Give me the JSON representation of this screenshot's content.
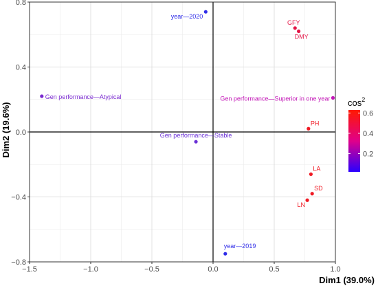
{
  "chart_data": {
    "type": "scatter",
    "xlabel": "Dim1 (39.0%)",
    "ylabel": "Dim2 (19.6%)",
    "xlim": [
      -1.5,
      1.0
    ],
    "ylim": [
      -0.8,
      0.8
    ],
    "x_ticks": [
      -1.5,
      -1.0,
      -0.5,
      0.0,
      0.5,
      1.0
    ],
    "y_ticks": [
      -0.8,
      -0.4,
      0.0,
      0.4,
      0.8
    ],
    "x_tick_labels": [
      "−1.5",
      "−1.0",
      "−0.5",
      "0.0",
      "0.5",
      "1.0"
    ],
    "y_tick_labels": [
      "−0.8",
      "−0.4",
      "0.0",
      "0.4",
      "0.8"
    ],
    "grid": true,
    "reference_lines": [
      0,
      0
    ],
    "legend": {
      "title": "cos",
      "title_superscript": "2",
      "position": "right",
      "labels": [
        "0.6",
        "0.4",
        "0.2"
      ],
      "values": [
        0.6,
        0.4,
        0.2
      ],
      "range": [
        0.02,
        0.63
      ],
      "colors": [
        "#2a00ff",
        "#e0008a",
        "#ff1a00"
      ]
    },
    "points": [
      {
        "label": "year—2020",
        "x": -0.06,
        "y": 0.74,
        "cos2": 0.05,
        "color": "#2f2ce8",
        "anchor": "end",
        "dx": -4,
        "dy": 10
      },
      {
        "label": "GFY",
        "x": 0.67,
        "y": 0.64,
        "cos2": 0.55,
        "color": "#e41546",
        "anchor": "middle",
        "dx": -2,
        "dy": -5
      },
      {
        "label": "DMY",
        "x": 0.7,
        "y": 0.62,
        "cos2": 0.55,
        "color": "#e41546",
        "anchor": "middle",
        "dx": 4,
        "dy": 11
      },
      {
        "label": "Gen performance—Atypical",
        "x": -1.4,
        "y": 0.22,
        "cos2": 0.15,
        "color": "#7a2ad0",
        "anchor": "start",
        "dx": 5,
        "dy": 4
      },
      {
        "label": "Gen performance—Superior in one year",
        "x": 0.98,
        "y": 0.21,
        "cos2": 0.35,
        "color": "#c417b8",
        "anchor": "end",
        "dx": -4,
        "dy": 4
      },
      {
        "label": "PH",
        "x": 0.78,
        "y": 0.02,
        "cos2": 0.6,
        "color": "#f01a24",
        "anchor": "start",
        "dx": 3,
        "dy": -5
      },
      {
        "label": "Gen performance—Stable",
        "x": -0.14,
        "y": -0.06,
        "cos2": 0.12,
        "color": "#6a30d6",
        "anchor": "middle",
        "dx": 0,
        "dy": -6
      },
      {
        "label": "LA",
        "x": 0.8,
        "y": -0.26,
        "cos2": 0.6,
        "color": "#f01a24",
        "anchor": "start",
        "dx": 3,
        "dy": -5
      },
      {
        "label": "SD",
        "x": 0.81,
        "y": -0.38,
        "cos2": 0.6,
        "color": "#f01a24",
        "anchor": "start",
        "dx": 3,
        "dy": -5
      },
      {
        "label": "LN",
        "x": 0.77,
        "y": -0.42,
        "cos2": 0.6,
        "color": "#f01a24",
        "anchor": "end",
        "dx": -3,
        "dy": 10
      },
      {
        "label": "year—2019",
        "x": 0.1,
        "y": -0.75,
        "cos2": 0.04,
        "color": "#2f2ce8",
        "anchor": "start",
        "dx": -2,
        "dy": -8
      }
    ]
  }
}
